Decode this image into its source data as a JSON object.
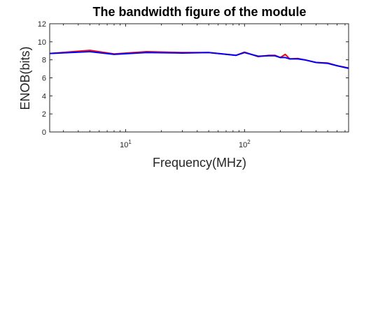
{
  "chart_data": {
    "type": "line",
    "title": "The bandwidth figure of the module",
    "xlabel": "Frequency(MHz)",
    "ylabel": "ENOB(bits)",
    "xscale": "log",
    "xlim": [
      2.3,
      750
    ],
    "ylim": [
      0,
      12
    ],
    "yticks": [
      0,
      2,
      4,
      6,
      8,
      10,
      12
    ],
    "xticks": [
      {
        "value": 10,
        "base": "10",
        "exp": "1"
      },
      {
        "value": 100,
        "base": "10",
        "exp": "2"
      }
    ],
    "grid": false,
    "legend": "none",
    "series": [
      {
        "color": "#ff0000",
        "x": [
          2.3,
          5,
          8,
          15,
          30,
          50,
          85,
          100,
          130,
          160,
          180,
          200,
          220,
          240,
          280,
          320,
          400,
          500,
          600,
          750
        ],
        "y": [
          8.7,
          9.05,
          8.65,
          8.9,
          8.8,
          8.8,
          8.5,
          8.85,
          8.35,
          8.5,
          8.5,
          8.25,
          8.6,
          8.1,
          8.15,
          8.0,
          7.7,
          7.65,
          7.35,
          7.1
        ]
      },
      {
        "color": "#0000ff",
        "x": [
          2.3,
          5,
          8,
          15,
          30,
          50,
          85,
          100,
          130,
          160,
          180,
          200,
          220,
          240,
          280,
          320,
          400,
          500,
          600,
          750
        ],
        "y": [
          8.7,
          8.9,
          8.6,
          8.8,
          8.75,
          8.8,
          8.5,
          8.8,
          8.4,
          8.45,
          8.45,
          8.25,
          8.25,
          8.1,
          8.1,
          8.0,
          7.7,
          7.6,
          7.35,
          7.05
        ]
      }
    ]
  }
}
